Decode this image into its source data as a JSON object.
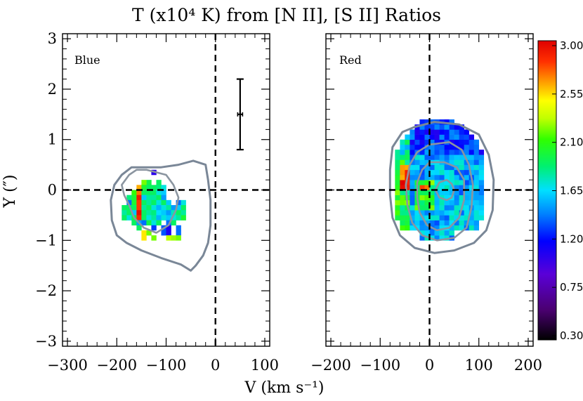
{
  "chart_data": {
    "type": "heatmap",
    "title": "T (x10⁴ K) from [N II], [S II] Ratios",
    "xlabel": "V (km s⁻¹)",
    "ylabel": "Y (″)",
    "panels": [
      {
        "label": "Blue",
        "xlim": [
          -310,
          110
        ],
        "ylim": [
          -3.1,
          3.1
        ],
        "xticks": [
          -300,
          -200,
          -100,
          0,
          100
        ],
        "xtick_labels": [
          "−300",
          "−200",
          "−100",
          "0",
          "100"
        ],
        "yticks": [
          -3,
          -2,
          -1,
          0,
          1,
          2,
          3
        ],
        "ytick_labels": [
          "−3",
          "−2",
          "−1",
          "0",
          "1",
          "2",
          "3"
        ],
        "error_bar": {
          "x": 50,
          "y": 1.5,
          "y_err": 0.7,
          "x_err": 5
        },
        "cell_size": {
          "dx": 10,
          "dy": 0.1
        },
        "cells": [
          [
            -130,
            0.3,
            1.05
          ],
          [
            -140,
            0.1,
            1.95
          ],
          [
            -150,
            0.1,
            2.2
          ],
          [
            -120,
            0.1,
            1.9
          ],
          [
            -160,
            0.0,
            2.6
          ],
          [
            -150,
            0.0,
            2.0
          ],
          [
            -140,
            0.0,
            1.9
          ],
          [
            -130,
            0.0,
            1.9
          ],
          [
            -120,
            0.0,
            1.85
          ],
          [
            -110,
            0.0,
            1.7
          ],
          [
            -170,
            -0.1,
            2.1
          ],
          [
            -160,
            -0.1,
            2.7
          ],
          [
            -150,
            -0.1,
            1.9
          ],
          [
            -140,
            -0.1,
            1.9
          ],
          [
            -130,
            -0.1,
            1.9
          ],
          [
            -120,
            -0.1,
            1.7
          ],
          [
            -110,
            -0.1,
            1.6
          ],
          [
            -180,
            -0.2,
            1.85
          ],
          [
            -170,
            -0.2,
            2.0
          ],
          [
            -160,
            -0.2,
            2.9
          ],
          [
            -150,
            -0.2,
            1.6
          ],
          [
            -140,
            -0.2,
            1.8
          ],
          [
            -130,
            -0.2,
            1.8
          ],
          [
            -120,
            -0.2,
            1.9
          ],
          [
            -110,
            -0.2,
            1.5
          ],
          [
            -180,
            -0.3,
            1.4
          ],
          [
            -170,
            -0.3,
            2.0
          ],
          [
            -160,
            -0.3,
            2.8
          ],
          [
            -150,
            -0.3,
            1.9
          ],
          [
            -140,
            -0.3,
            1.8
          ],
          [
            -130,
            -0.3,
            1.9
          ],
          [
            -120,
            -0.3,
            1.7
          ],
          [
            -110,
            -0.3,
            1.9
          ],
          [
            -100,
            -0.3,
            1.6
          ],
          [
            -80,
            -0.3,
            1.4
          ],
          [
            -70,
            -0.3,
            1.7
          ],
          [
            -190,
            -0.4,
            1.9
          ],
          [
            -180,
            -0.4,
            1.9
          ],
          [
            -170,
            -0.4,
            1.9
          ],
          [
            -160,
            -0.4,
            2.8
          ],
          [
            -150,
            -0.4,
            1.8
          ],
          [
            -140,
            -0.4,
            1.9
          ],
          [
            -130,
            -0.4,
            1.7
          ],
          [
            -120,
            -0.4,
            1.55
          ],
          [
            -110,
            -0.4,
            1.7
          ],
          [
            -100,
            -0.4,
            1.8
          ],
          [
            -90,
            -0.4,
            1.5
          ],
          [
            -80,
            -0.4,
            1.6
          ],
          [
            -70,
            -0.4,
            1.9
          ],
          [
            -190,
            -0.5,
            1.8
          ],
          [
            -180,
            -0.5,
            1.9
          ],
          [
            -170,
            -0.5,
            1.6
          ],
          [
            -160,
            -0.5,
            2.95
          ],
          [
            -150,
            -0.5,
            1.9
          ],
          [
            -140,
            -0.5,
            1.8
          ],
          [
            -130,
            -0.5,
            1.85
          ],
          [
            -120,
            -0.5,
            1.65
          ],
          [
            -110,
            -0.5,
            1.6
          ],
          [
            -100,
            -0.5,
            1.5
          ],
          [
            -90,
            -0.5,
            1.75
          ],
          [
            -80,
            -0.5,
            1.9
          ],
          [
            -70,
            -0.5,
            1.8
          ],
          [
            -190,
            -0.6,
            1.9
          ],
          [
            -180,
            -0.6,
            1.7
          ],
          [
            -170,
            -0.6,
            1.95
          ],
          [
            -160,
            -0.6,
            2.85
          ],
          [
            -150,
            -0.6,
            1.9
          ],
          [
            -140,
            -0.6,
            1.7
          ],
          [
            -130,
            -0.6,
            1.8
          ],
          [
            -120,
            -0.6,
            1.55
          ],
          [
            -110,
            -0.6,
            1.7
          ],
          [
            -100,
            -0.6,
            1.6
          ],
          [
            -90,
            -0.6,
            1.7
          ],
          [
            -80,
            -0.6,
            1.8
          ],
          [
            -70,
            -0.6,
            2.0
          ],
          [
            -170,
            -0.7,
            1.9
          ],
          [
            -160,
            -0.7,
            1.5
          ],
          [
            -150,
            -0.7,
            1.4
          ],
          [
            -140,
            -0.7,
            1.95
          ],
          [
            -130,
            -0.7,
            1.7
          ],
          [
            -120,
            -0.7,
            1.9
          ],
          [
            -100,
            -0.7,
            1.4
          ],
          [
            -90,
            -0.7,
            1.9
          ],
          [
            -160,
            -0.8,
            1.9
          ],
          [
            -130,
            -0.8,
            1.3
          ],
          [
            -110,
            -0.8,
            1.35
          ],
          [
            -100,
            -0.8,
            1.1
          ],
          [
            -80,
            -0.8,
            1.4
          ],
          [
            -150,
            -0.9,
            2.5
          ],
          [
            -140,
            -0.9,
            2.2
          ],
          [
            -110,
            -0.9,
            1.35
          ],
          [
            -100,
            -0.9,
            1.1
          ],
          [
            -80,
            -0.9,
            1.4
          ],
          [
            -150,
            -1.0,
            2.5
          ],
          [
            -130,
            -1.0,
            2.2
          ],
          [
            -100,
            -1.0,
            2.3
          ],
          [
            -90,
            -1.0,
            2.25
          ],
          [
            -80,
            -1.0,
            2.2
          ]
        ],
        "contours": [
          [
            [
              -190,
              0.1
            ],
            [
              -175,
              0.3
            ],
            [
              -160,
              0.4
            ],
            [
              -140,
              0.4
            ],
            [
              -120,
              0.35
            ],
            [
              -100,
              0.3
            ],
            [
              -85,
              0.1
            ],
            [
              -75,
              -0.15
            ],
            [
              -80,
              -0.4
            ],
            [
              -95,
              -0.7
            ],
            [
              -120,
              -0.85
            ],
            [
              -145,
              -0.75
            ],
            [
              -165,
              -0.55
            ],
            [
              -175,
              -0.3
            ],
            [
              -185,
              -0.1
            ],
            [
              -190,
              0.1
            ]
          ],
          [
            [
              -190,
              0.3
            ],
            [
              -170,
              0.45
            ],
            [
              -145,
              0.45
            ],
            [
              -110,
              0.45
            ],
            [
              -75,
              0.5
            ],
            [
              -45,
              0.58
            ],
            [
              -20,
              0.5
            ],
            [
              -15,
              0.2
            ],
            [
              -10,
              -0.2
            ],
            [
              -10,
              -0.7
            ],
            [
              -15,
              -1.05
            ],
            [
              -25,
              -1.3
            ],
            [
              -40,
              -1.5
            ],
            [
              -50,
              -1.6
            ],
            [
              -70,
              -1.48
            ],
            [
              -110,
              -1.35
            ],
            [
              -150,
              -1.2
            ],
            [
              -180,
              -1.05
            ],
            [
              -200,
              -0.9
            ],
            [
              -210,
              -0.6
            ],
            [
              -212,
              -0.2
            ],
            [
              -205,
              0.1
            ],
            [
              -190,
              0.3
            ]
          ]
        ]
      },
      {
        "label": "Red",
        "xlim": [
          -210,
          210
        ],
        "ylim": [
          -3.1,
          3.1
        ],
        "xticks": [
          -200,
          -100,
          0,
          100,
          200
        ],
        "xtick_labels": [
          "−200",
          "−100",
          "0",
          "100",
          "200"
        ],
        "yticks": [
          -3,
          -2,
          -1,
          0,
          1,
          2,
          3
        ],
        "cell_size": {
          "dx": 10,
          "dy": 0.1
        },
        "field": {
          "x_min": -70,
          "x_max": 100,
          "y_min": -1.0,
          "y_max": 1.3
        },
        "contours": [
          [
            [
              0,
              0.55
            ],
            [
              30,
              0.55
            ],
            [
              55,
              0.45
            ],
            [
              70,
              0.2
            ],
            [
              70,
              -0.2
            ],
            [
              60,
              -0.55
            ],
            [
              40,
              -0.75
            ],
            [
              15,
              -0.8
            ],
            [
              -5,
              -0.7
            ],
            [
              -20,
              -0.45
            ],
            [
              -25,
              -0.15
            ],
            [
              -25,
              0.15
            ],
            [
              -15,
              0.4
            ],
            [
              0,
              0.55
            ]
          ],
          [
            [
              0,
              0.9
            ],
            [
              40,
              0.95
            ],
            [
              65,
              0.8
            ],
            [
              80,
              0.5
            ],
            [
              88,
              0.1
            ],
            [
              85,
              -0.35
            ],
            [
              75,
              -0.75
            ],
            [
              50,
              -0.95
            ],
            [
              15,
              -1.0
            ],
            [
              -15,
              -0.9
            ],
            [
              -35,
              -0.65
            ],
            [
              -45,
              -0.3
            ],
            [
              -48,
              0.1
            ],
            [
              -40,
              0.5
            ],
            [
              -25,
              0.75
            ],
            [
              0,
              0.9
            ]
          ],
          [
            [
              20,
              0.15
            ],
            [
              35,
              0.2
            ],
            [
              45,
              0.12
            ],
            [
              50,
              0
            ],
            [
              45,
              -0.15
            ],
            [
              35,
              -0.2
            ],
            [
              20,
              -0.15
            ],
            [
              12,
              0
            ],
            [
              20,
              0.15
            ]
          ],
          [
            [
              -30,
              1.25
            ],
            [
              10,
              1.35
            ],
            [
              60,
              1.3
            ],
            [
              100,
              1.1
            ],
            [
              120,
              0.7
            ],
            [
              130,
              0.2
            ],
            [
              128,
              -0.4
            ],
            [
              115,
              -0.8
            ],
            [
              90,
              -1.05
            ],
            [
              50,
              -1.2
            ],
            [
              10,
              -1.25
            ],
            [
              -30,
              -1.15
            ],
            [
              -60,
              -0.9
            ],
            [
              -75,
              -0.55
            ],
            [
              -80,
              -0.1
            ],
            [
              -80,
              0.4
            ],
            [
              -75,
              0.85
            ],
            [
              -55,
              1.15
            ],
            [
              -30,
              1.25
            ]
          ]
        ]
      }
    ],
    "colorbar": {
      "min": 0.3,
      "max": 3.0,
      "ticks": [
        "3.00",
        "2.55",
        "2.10",
        "1.65",
        "1.20",
        "0.75",
        "0.30"
      ]
    },
    "colors": {
      "contour": "#7a8797",
      "inner_contour": "#8b95a0",
      "dashed_lines": "#000000"
    }
  }
}
